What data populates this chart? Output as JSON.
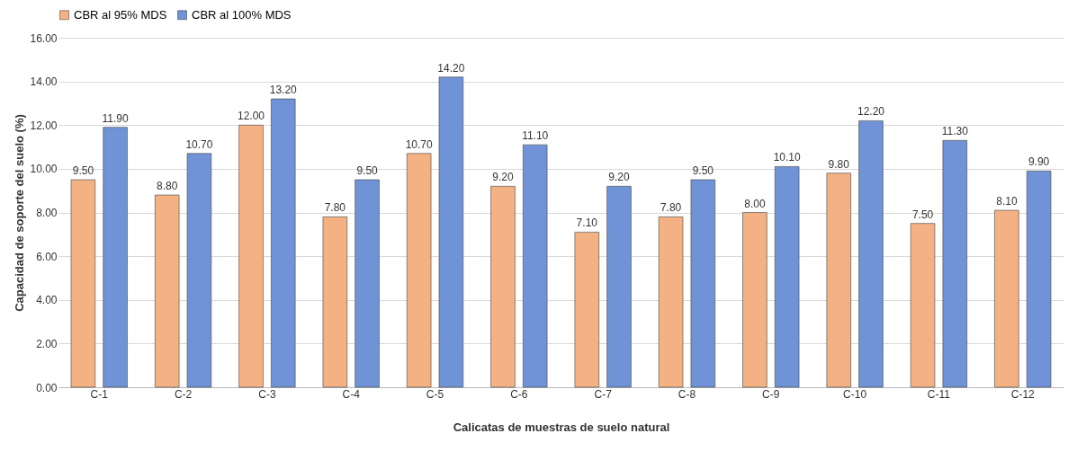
{
  "chart_data": {
    "type": "bar",
    "xlabel": "Calicatas de muestras de suelo natural",
    "ylabel": "Capacidad de soporte del suelo (%)",
    "categories": [
      "C-1",
      "C-2",
      "C-3",
      "C-4",
      "C-5",
      "C-6",
      "C-7",
      "C-8",
      "C-9",
      "C-10",
      "C-11",
      "C-12"
    ],
    "series": [
      {
        "name": "CBR al 95% MDS",
        "color": "#f4b183",
        "values": [
          9.5,
          8.8,
          12.0,
          7.8,
          10.7,
          9.2,
          7.1,
          7.8,
          8.0,
          9.8,
          7.5,
          8.1
        ],
        "value_labels": [
          "9.50",
          "8.80",
          "12.00",
          "7.80",
          "10.70",
          "9.20",
          "7.10",
          "7.80",
          "8.00",
          "9.80",
          "7.50",
          "8.10"
        ]
      },
      {
        "name": "CBR al 100% MDS",
        "color": "#6f93d6",
        "values": [
          11.9,
          10.7,
          13.2,
          9.5,
          14.2,
          11.1,
          9.2,
          9.5,
          10.1,
          12.2,
          11.3,
          9.9
        ],
        "value_labels": [
          "11.90",
          "10.70",
          "13.20",
          "9.50",
          "14.20",
          "11.10",
          "9.20",
          "9.50",
          "10.10",
          "12.20",
          "11.30",
          "9.90"
        ]
      }
    ],
    "ylim": [
      0,
      16
    ],
    "yticks": [
      {
        "value": 0,
        "label": "0.00"
      },
      {
        "value": 2,
        "label": "2.00"
      },
      {
        "value": 4,
        "label": "4.00"
      },
      {
        "value": 6,
        "label": "6.00"
      },
      {
        "value": 8,
        "label": "8.00"
      },
      {
        "value": 10,
        "label": "10.00"
      },
      {
        "value": 12,
        "label": "12.00"
      },
      {
        "value": 14,
        "label": "14.00"
      },
      {
        "value": 16,
        "label": "16.00"
      }
    ],
    "grid": "y",
    "legend": "top"
  }
}
